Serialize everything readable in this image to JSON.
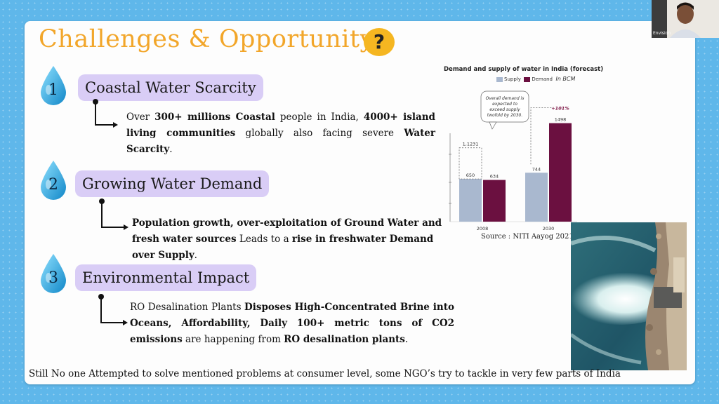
{
  "slide": {
    "title": "Challenges & Opportunity",
    "title_icon": "question-mark-icon",
    "question_glyph": "?",
    "sections": [
      {
        "number": "1",
        "heading": "Coastal Water Scarcity",
        "text_parts": [
          {
            "t": "Over ",
            "b": false
          },
          {
            "t": "300+ millions Coastal",
            "b": true
          },
          {
            "t": " people in India, ",
            "b": false
          },
          {
            "t": "4000+ island living communities",
            "b": true
          },
          {
            "t": " globally also facing severe ",
            "b": false
          },
          {
            "t": "Water Scarcity",
            "b": true
          },
          {
            "t": ".",
            "b": false
          }
        ]
      },
      {
        "number": "2",
        "heading": "Growing Water Demand",
        "text_parts": [
          {
            "t": "Population growth, over-exploitation of Ground Water and fresh water sources",
            "b": true
          },
          {
            "t": " Leads to a ",
            "b": false
          },
          {
            "t": "rise in freshwater Demand over Supply",
            "b": true
          },
          {
            "t": ".",
            "b": false
          }
        ]
      },
      {
        "number": "3",
        "heading": "Environmental Impact",
        "text_parts": [
          {
            "t": "RO Desalination Plants ",
            "b": false
          },
          {
            "t": "Disposes High-Concentrated Brine into Oceans, Affordability, Daily 100+ metric tons of CO2 emissions",
            "b": true
          },
          {
            "t": " are happening from ",
            "b": false
          },
          {
            "t": "RO desalination plants",
            "b": true
          },
          {
            "t": ".",
            "b": false
          }
        ]
      }
    ],
    "footer": "Still No one Attempted to solve mentioned problems at consumer level, some NGO’s try to tackle in very few parts of India",
    "source": "Source :  NITI Aayog 2021"
  },
  "chart_data": {
    "type": "bar",
    "title": "Demand and supply of water in India (forecast)",
    "unit_label": "In BCM",
    "categories": [
      "2008",
      "2030"
    ],
    "series": [
      {
        "name": "Supply",
        "values": [
          650,
          744
        ],
        "color": "#a9b8cf"
      },
      {
        "name": "Demand",
        "values": [
          634,
          1498
        ],
        "color": "#6b1040"
      }
    ],
    "annotations": {
      "total_2008": "1,123",
      "total_2008_suffix": "1",
      "increase": "+101%",
      "callout": [
        "Overall demand is",
        "expected to",
        "exceed supply",
        "twofold by 2030."
      ]
    },
    "ylim": [
      0,
      1600
    ],
    "legend_position": "top"
  },
  "webcam": {
    "name_label": "Envision"
  }
}
